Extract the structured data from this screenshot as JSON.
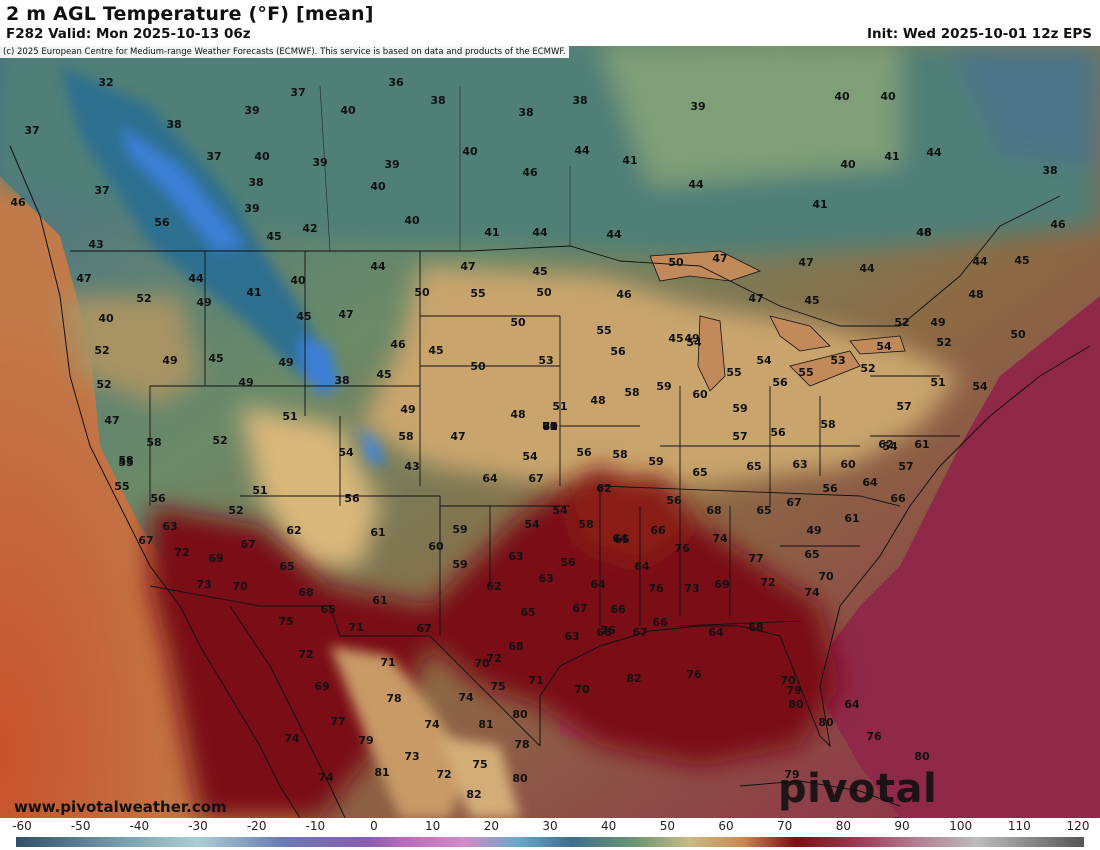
{
  "header": {
    "title": "2 m AGL Temperature (°F) [mean]",
    "valid": "F282 Valid: Mon 2025-10-13 06z",
    "init": "Init: Wed 2025-10-01 12z EPS"
  },
  "map": {
    "copyright": "(c) 2025 European Centre for Medium-range Weather Forecasts (ECMWF). This service is based on data and products of the ECMWF.",
    "website": "www.pivotalweather.com",
    "watermark": "pivotal weather",
    "values": [
      "32",
      "36",
      "37",
      "38",
      "40",
      "38",
      "38",
      "39",
      "40",
      "40",
      "37",
      "38",
      "39",
      "37",
      "40",
      "39",
      "39",
      "40",
      "40",
      "44",
      "41",
      "44",
      "46",
      "41",
      "44",
      "40",
      "38",
      "37",
      "38",
      "39",
      "40",
      "41",
      "46",
      "56",
      "45",
      "42",
      "43",
      "41",
      "44",
      "44",
      "46",
      "46",
      "44",
      "45",
      "48",
      "44",
      "47",
      "41",
      "40",
      "44",
      "44",
      "47",
      "45",
      "47",
      "50",
      "47",
      "50",
      "55",
      "50",
      "46",
      "47",
      "45",
      "48",
      "52",
      "49",
      "40",
      "45",
      "47",
      "50",
      "55",
      "45",
      "49",
      "52",
      "49",
      "50",
      "52",
      "49",
      "45",
      "49",
      "45",
      "38",
      "46",
      "45",
      "50",
      "53",
      "56",
      "54",
      "55",
      "54",
      "56",
      "53",
      "54",
      "52",
      "55",
      "52",
      "51",
      "54",
      "52",
      "49",
      "51",
      "49",
      "47",
      "48",
      "51",
      "48",
      "58",
      "59",
      "60",
      "59",
      "57",
      "56",
      "58",
      "54",
      "57",
      "55",
      "58",
      "52",
      "54",
      "58",
      "47",
      "43",
      "54",
      "56",
      "58",
      "59",
      "65",
      "65",
      "63",
      "60",
      "62",
      "61",
      "57",
      "58",
      "55",
      "56",
      "51",
      "52",
      "56",
      "64",
      "67",
      "62",
      "56",
      "68",
      "65",
      "67",
      "56",
      "64",
      "66",
      "63",
      "62",
      "61",
      "59",
      "54",
      "54",
      "58",
      "65",
      "66",
      "49",
      "61",
      "67",
      "72",
      "69",
      "67",
      "65",
      "60",
      "59",
      "63",
      "56",
      "64",
      "76",
      "74",
      "77",
      "65",
      "70",
      "73",
      "70",
      "68",
      "65",
      "61",
      "62",
      "63",
      "64",
      "64",
      "76",
      "73",
      "69",
      "72",
      "74",
      "75",
      "71",
      "67",
      "65",
      "67",
      "66",
      "64",
      "63",
      "76",
      "66",
      "68",
      "72",
      "71",
      "70",
      "72",
      "68",
      "66",
      "67",
      "70",
      "79",
      "69",
      "78",
      "74",
      "75",
      "71",
      "70",
      "82",
      "76",
      "80",
      "64",
      "74",
      "77",
      "74",
      "81",
      "80",
      "80",
      "76",
      "79",
      "74",
      "81",
      "73",
      "72",
      "75",
      "78",
      "80",
      "80",
      "79",
      "82",
      "60",
      "60",
      "60",
      "75",
      "75",
      "81",
      "82",
      "60"
    ]
  },
  "legend": {
    "ticks": [
      "-60",
      "-50",
      "-40",
      "-30",
      "-20",
      "-10",
      "0",
      "10",
      "20",
      "30",
      "40",
      "50",
      "60",
      "70",
      "80",
      "90",
      "100",
      "110",
      "120"
    ]
  },
  "colors": {
    "ocean_warm": "#8f2849",
    "ocean_cool": "#b5612c",
    "land_hot": "#7a0e12",
    "land_mild": "#c9a56d",
    "land_cool": "#5b8a74",
    "land_cold": "#2a6a8a",
    "snow_blue": "#3e7fd9"
  }
}
